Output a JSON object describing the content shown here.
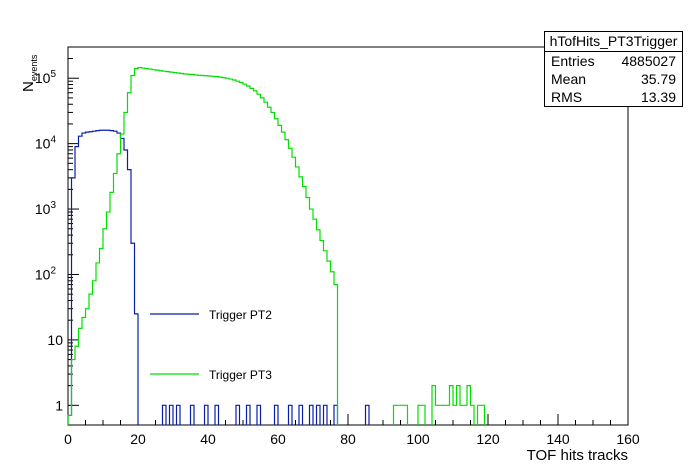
{
  "stats_box": {
    "title": "hTofHits_PT3Trigger",
    "rows": [
      {
        "name": "Entries",
        "value": "4885027"
      },
      {
        "name": "Mean",
        "value": "35.79"
      },
      {
        "name": "RMS",
        "value": "13.39"
      }
    ]
  },
  "chart_data": {
    "type": "line",
    "title": "",
    "xlabel": "TOF hits tracks",
    "ylabel": "N",
    "ylabel_sub": "events",
    "xlim": [
      0,
      160
    ],
    "ylim": [
      0.5,
      300000
    ],
    "yscale": "log",
    "x_ticks": [
      0,
      20,
      40,
      60,
      80,
      100,
      120,
      140,
      160
    ],
    "y_ticks": [
      {
        "value": 1,
        "label": "1"
      },
      {
        "value": 10,
        "label": "10"
      },
      {
        "value": 100,
        "label": "10",
        "exp": "2"
      },
      {
        "value": 1000,
        "label": "10",
        "exp": "3"
      },
      {
        "value": 10000,
        "label": "10",
        "exp": "4"
      },
      {
        "value": 100000,
        "label": "10",
        "exp": "5"
      }
    ],
    "bin_width": 1,
    "series": [
      {
        "name": "Trigger PT2",
        "color": "#0a1fa8",
        "bins": [
          [
            0,
            0.7
          ],
          [
            1,
            3000
          ],
          [
            2,
            9000
          ],
          [
            3,
            13000
          ],
          [
            4,
            14500
          ],
          [
            5,
            15000
          ],
          [
            6,
            15200
          ],
          [
            7,
            15500
          ],
          [
            8,
            15800
          ],
          [
            9,
            16000
          ],
          [
            10,
            16000
          ],
          [
            11,
            16000
          ],
          [
            12,
            15800
          ],
          [
            13,
            15500
          ],
          [
            14,
            14500
          ],
          [
            15,
            12000
          ],
          [
            16,
            8000
          ],
          [
            17,
            4000
          ],
          [
            18,
            300
          ],
          [
            19,
            25
          ],
          [
            27,
            1
          ],
          [
            29,
            1
          ],
          [
            31,
            1
          ],
          [
            35,
            1
          ],
          [
            39,
            1
          ],
          [
            42,
            1
          ],
          [
            48,
            1
          ],
          [
            51,
            1
          ],
          [
            54,
            1
          ],
          [
            59,
            1
          ],
          [
            63,
            1
          ],
          [
            66,
            1
          ],
          [
            69,
            1
          ],
          [
            71,
            1
          ],
          [
            73,
            1
          ],
          [
            76,
            1
          ],
          [
            85,
            1
          ]
        ]
      },
      {
        "name": "Trigger PT3",
        "color": "#00e000",
        "bins": [
          [
            0,
            0.7
          ],
          [
            1,
            5
          ],
          [
            2,
            8
          ],
          [
            3,
            15
          ],
          [
            4,
            22
          ],
          [
            5,
            30
          ],
          [
            6,
            50
          ],
          [
            7,
            80
          ],
          [
            8,
            150
          ],
          [
            9,
            250
          ],
          [
            10,
            500
          ],
          [
            11,
            900
          ],
          [
            12,
            1800
          ],
          [
            13,
            3500
          ],
          [
            14,
            7000
          ],
          [
            15,
            14000
          ],
          [
            16,
            30000
          ],
          [
            17,
            60000
          ],
          [
            18,
            110000
          ],
          [
            19,
            140000
          ],
          [
            20,
            145000
          ],
          [
            21,
            143000
          ],
          [
            22,
            140000
          ],
          [
            23,
            138000
          ],
          [
            24,
            135000
          ],
          [
            25,
            133000
          ],
          [
            26,
            130000
          ],
          [
            27,
            128000
          ],
          [
            28,
            126000
          ],
          [
            29,
            124000
          ],
          [
            30,
            122000
          ],
          [
            31,
            120000
          ],
          [
            32,
            118000
          ],
          [
            33,
            116000
          ],
          [
            34,
            115000
          ],
          [
            35,
            114000
          ],
          [
            36,
            112000
          ],
          [
            37,
            111000
          ],
          [
            38,
            110000
          ],
          [
            39,
            109000
          ],
          [
            40,
            108000
          ],
          [
            41,
            107000
          ],
          [
            42,
            106000
          ],
          [
            43,
            104000
          ],
          [
            44,
            102000
          ],
          [
            45,
            100000
          ],
          [
            46,
            97000
          ],
          [
            47,
            94000
          ],
          [
            48,
            90000
          ],
          [
            49,
            86000
          ],
          [
            50,
            81000
          ],
          [
            51,
            76000
          ],
          [
            52,
            70000
          ],
          [
            53,
            64000
          ],
          [
            54,
            57000
          ],
          [
            55,
            50000
          ],
          [
            56,
            43000
          ],
          [
            57,
            36000
          ],
          [
            58,
            30000
          ],
          [
            59,
            24000
          ],
          [
            60,
            19000
          ],
          [
            61,
            15000
          ],
          [
            62,
            11500
          ],
          [
            63,
            8500
          ],
          [
            64,
            6200
          ],
          [
            65,
            4400
          ],
          [
            66,
            3100
          ],
          [
            67,
            2200
          ],
          [
            68,
            1500
          ],
          [
            69,
            1000
          ],
          [
            70,
            700
          ],
          [
            71,
            480
          ],
          [
            72,
            330
          ],
          [
            73,
            230
          ],
          [
            74,
            160
          ],
          [
            75,
            110
          ],
          [
            76,
            70
          ],
          [
            93,
            1
          ],
          [
            94,
            1
          ],
          [
            95,
            1
          ],
          [
            96,
            1
          ],
          [
            100,
            1
          ],
          [
            101,
            1
          ],
          [
            104,
            2
          ],
          [
            105,
            1
          ],
          [
            106,
            1
          ],
          [
            107,
            1
          ],
          [
            108,
            1
          ],
          [
            109,
            2
          ],
          [
            110,
            1
          ],
          [
            111,
            2
          ],
          [
            112,
            1
          ],
          [
            113,
            1
          ],
          [
            114,
            2
          ],
          [
            115,
            1
          ],
          [
            117,
            1
          ],
          [
            118,
            1
          ]
        ]
      }
    ]
  }
}
